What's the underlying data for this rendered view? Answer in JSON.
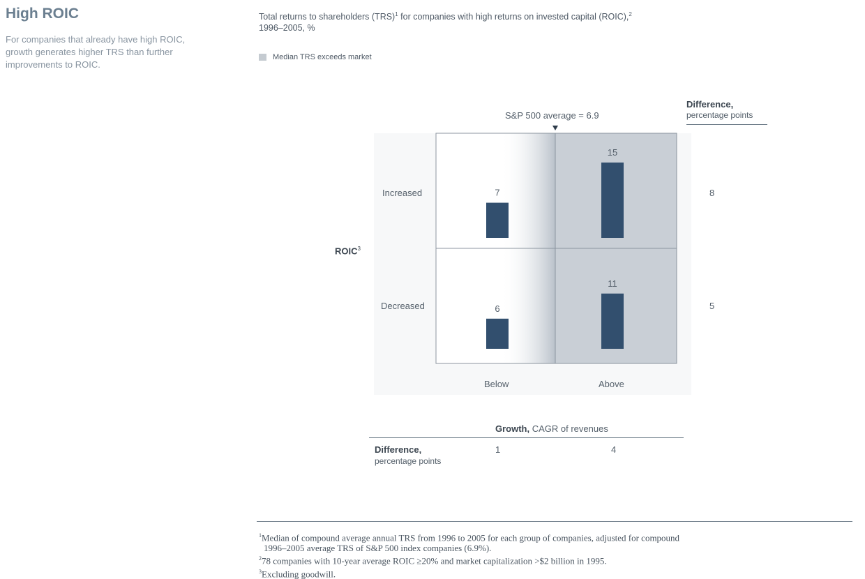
{
  "page": {
    "heading": "High ROIC",
    "intro": "For companies that already have high ROIC, growth generates higher TRS than further improvements to ROIC."
  },
  "chart_data": {
    "type": "bar",
    "title_line1": "Total returns to shareholders (TRS)",
    "title_sup1": "1",
    "title_line1b": " for companies with high returns on invested capital (ROIC),",
    "title_sup2": "2",
    "title_line2": "1996–2005, %",
    "legend": "Median TRS exceeds market",
    "benchmark_label": "S&P 500 average = 6.9",
    "benchmark_value": 6.9,
    "x_axis": {
      "label_bold": "Growth,",
      "label_rest": " CAGR of revenues",
      "categories": [
        "Below",
        "Above"
      ]
    },
    "y_axis": {
      "label": "ROIC",
      "label_sup": "3",
      "categories": [
        "Increased",
        "Decreased"
      ]
    },
    "values": [
      {
        "roic": "Increased",
        "growth": "Below",
        "value": 7
      },
      {
        "roic": "Increased",
        "growth": "Above",
        "value": 15
      },
      {
        "roic": "Decreased",
        "growth": "Below",
        "value": 6
      },
      {
        "roic": "Decreased",
        "growth": "Above",
        "value": 11
      }
    ],
    "row_difference": {
      "header_bold": "Difference,",
      "header_sub": "percentage points",
      "values": [
        8,
        5
      ]
    },
    "column_difference": {
      "header_bold": "Difference,",
      "header_sub": "percentage points",
      "values": [
        1,
        4
      ]
    },
    "shaded_cells": "Above column",
    "colors": {
      "bar": "#324f6e",
      "shade": "#c9cfd6",
      "plot_bg": "#f7f8f9",
      "border": "#8c96a0"
    }
  },
  "footnotes": [
    {
      "sup": "1",
      "text": "Median of compound average annual TRS from 1996 to 2005 for each group of companies, adjusted for compound"
    },
    {
      "sup": "",
      "text": "1996–2005 average TRS of S&P 500 index companies (6.9%)."
    },
    {
      "sup": "2",
      "text": "78 companies with 10-year average ROIC ≥20% and market capitalization >$2 billion in 1995."
    },
    {
      "sup": "3",
      "text": "Excluding goodwill."
    }
  ]
}
